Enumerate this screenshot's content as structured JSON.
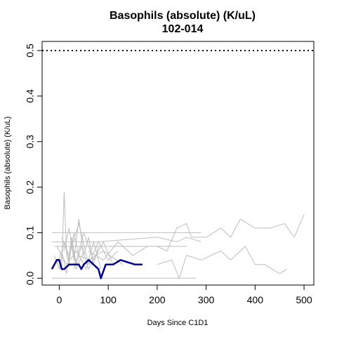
{
  "chart_data": {
    "type": "line",
    "title": "Basophils (absolute) (K/uL)",
    "subtitle": "102-014",
    "xlabel": "Days Since C1D1",
    "ylabel": "Basophils (absolute) (K/uL)",
    "xlim": [
      -35,
      520
    ],
    "ylim": [
      -0.015,
      0.52
    ],
    "xticks": [
      0,
      100,
      200,
      300,
      400,
      500
    ],
    "yticks": [
      0.0,
      0.1,
      0.2,
      0.3,
      0.4,
      0.5
    ],
    "xtick_labels": [
      "0",
      "100",
      "200",
      "300",
      "400",
      "500"
    ],
    "ytick_labels": [
      "0.0",
      "0.1",
      "0.2",
      "0.3",
      "0.4",
      "0.5"
    ],
    "reference_line": {
      "y": 0.5,
      "style": "dotted",
      "color": "#000000"
    },
    "colors": {
      "background_series": "#bebebe",
      "highlight": "#00008b"
    },
    "background_series": [
      {
        "x": [
          -15,
          0,
          10,
          25,
          50,
          90,
          150,
          250,
          290
        ],
        "y": [
          0.1,
          0.1,
          0.1,
          0.1,
          0.1,
          0.1,
          0.1,
          0.1,
          0.1
        ]
      },
      {
        "x": [
          -15,
          10,
          50,
          100,
          200,
          280
        ],
        "y": [
          0.0,
          0.0,
          0.0,
          0.0,
          0.0,
          0.0
        ]
      },
      {
        "x": [
          -15,
          30,
          80,
          200,
          240,
          260,
          290
        ],
        "y": [
          0.08,
          0.08,
          0.08,
          0.09,
          0.08,
          0.09,
          0.08
        ]
      },
      {
        "x": [
          -10,
          50,
          120,
          200,
          260
        ],
        "y": [
          0.07,
          0.07,
          0.07,
          0.07,
          0.07
        ]
      },
      {
        "x": [
          -10,
          0,
          10,
          20,
          30,
          40,
          60,
          90,
          130
        ],
        "y": [
          0.05,
          0.02,
          0.08,
          0.04,
          0.1,
          0.05,
          0.04,
          0.06,
          0.03
        ]
      },
      {
        "x": [
          -5,
          5,
          15,
          25,
          35,
          45,
          60,
          75
        ],
        "y": [
          0.03,
          0.06,
          0.01,
          0.09,
          0.03,
          0.07,
          0.02,
          0.05
        ]
      },
      {
        "x": [
          0,
          5,
          10,
          15,
          20,
          25,
          35,
          50
        ],
        "y": [
          0.04,
          0.02,
          0.19,
          0.05,
          0.03,
          0.08,
          0.02,
          0.06
        ]
      },
      {
        "x": [
          10,
          20,
          30,
          40,
          50,
          60,
          70,
          80
        ],
        "y": [
          0.06,
          0.11,
          0.04,
          0.13,
          0.05,
          0.09,
          0.03,
          0.07
        ]
      },
      {
        "x": [
          5,
          20,
          40,
          60,
          80,
          100,
          120
        ],
        "y": [
          0.09,
          0.05,
          0.12,
          0.03,
          0.08,
          0.04,
          0.06
        ]
      },
      {
        "x": [
          30,
          50,
          70,
          90,
          110
        ],
        "y": [
          0.02,
          0.1,
          0.04,
          0.08,
          0.03
        ]
      },
      {
        "x": [
          60,
          90,
          120,
          150,
          180
        ],
        "y": [
          0.06,
          0.04,
          0.08,
          0.05,
          0.07
        ]
      },
      {
        "x": [
          -5,
          15,
          35,
          55,
          70,
          85
        ],
        "y": [
          0.07,
          0.03,
          0.06,
          0.02,
          0.08,
          0.02
        ]
      },
      {
        "x": [
          200,
          230,
          245,
          260,
          290,
          330,
          350,
          380,
          400,
          420,
          450,
          465
        ],
        "y": [
          0.03,
          0.04,
          0.0,
          0.05,
          0.04,
          0.06,
          0.04,
          0.07,
          0.03,
          0.03,
          0.01,
          0.02
        ]
      },
      {
        "x": [
          200,
          220,
          240,
          260,
          270,
          300,
          330,
          350,
          370,
          400,
          430,
          460,
          480,
          500
        ],
        "y": [
          0.07,
          0.06,
          0.11,
          0.12,
          0.09,
          0.09,
          0.11,
          0.09,
          0.13,
          0.11,
          0.11,
          0.12,
          0.09,
          0.14
        ]
      }
    ],
    "highlight_series": {
      "color": "#00008b",
      "x": [
        -15,
        -10,
        -5,
        0,
        5,
        10,
        20,
        30,
        40,
        45,
        50,
        60,
        70,
        80,
        85,
        95,
        110,
        125,
        140,
        155,
        170
      ],
      "y": [
        0.02,
        0.03,
        0.04,
        0.04,
        0.02,
        0.02,
        0.03,
        0.03,
        0.03,
        0.02,
        0.03,
        0.04,
        0.03,
        0.02,
        0.0,
        0.03,
        0.03,
        0.04,
        0.035,
        0.03,
        0.03
      ]
    }
  }
}
